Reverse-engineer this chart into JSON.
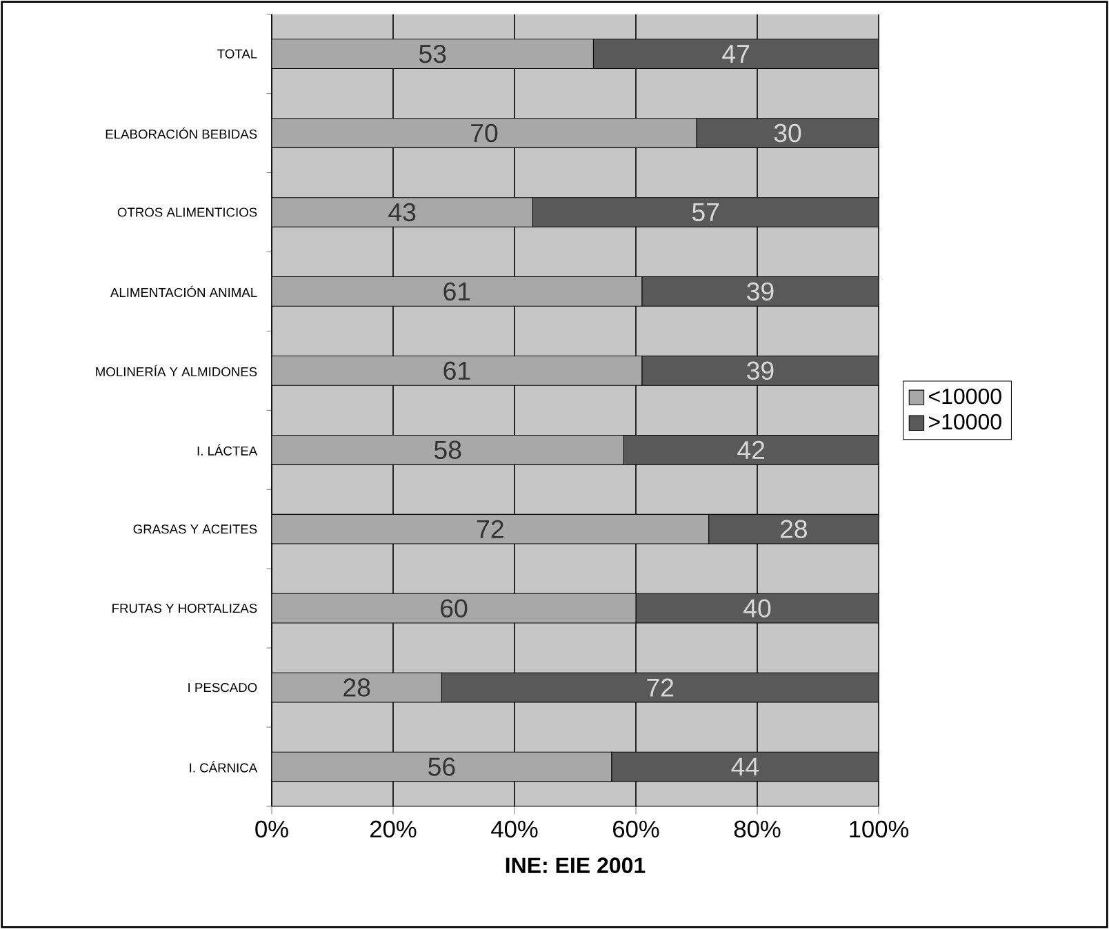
{
  "chart_data": {
    "type": "bar",
    "orientation": "horizontal",
    "stacked": true,
    "data_labels": true,
    "legend": "right",
    "grid": "x",
    "xlabel": "INE: EIE 2001",
    "categories": [
      "TOTAL",
      "ELABORACIÓN BEBIDAS",
      "OTROS ALIMENTICIOS",
      "ALIMENTACIÓN ANIMAL",
      "MOLINERÍA Y ALMIDONES",
      "I. LÁCTEA",
      "GRASAS Y ACEITES",
      "FRUTAS Y HORTALIZAS",
      "I PESCADO",
      "I. CÁRNICA"
    ],
    "xlim": [
      0,
      100
    ],
    "xticks": [
      {
        "value": 0,
        "label": "0%"
      },
      {
        "value": 20,
        "label": "20%"
      },
      {
        "value": 40,
        "label": "40%"
      },
      {
        "value": 60,
        "label": "60%"
      },
      {
        "value": 80,
        "label": "80%"
      },
      {
        "value": 100,
        "label": "100%"
      }
    ],
    "series": [
      {
        "name": "<10000",
        "color": "#a8a8a8",
        "values": [
          53,
          70,
          43,
          61,
          61,
          58,
          72,
          60,
          28,
          56
        ]
      },
      {
        "name": ">10000",
        "color": "#595959",
        "values": [
          47,
          30,
          57,
          39,
          39,
          42,
          28,
          40,
          72,
          44
        ]
      }
    ]
  }
}
